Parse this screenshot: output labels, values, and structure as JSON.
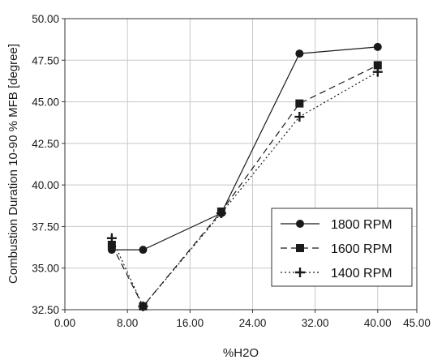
{
  "chart_data": {
    "type": "line",
    "title": "",
    "xlabel": "%H2O",
    "ylabel": "Combustion Duration 10-90 % MFB [degree]",
    "xlim": [
      0,
      45
    ],
    "ylim": [
      32.5,
      50
    ],
    "x_ticks": [
      0,
      8,
      16,
      24,
      32,
      40,
      45
    ],
    "x_tick_labels": [
      "0.00",
      "8.00",
      "16.00",
      "24.00",
      "32.00",
      "40.00",
      "45.00"
    ],
    "y_ticks": [
      32.5,
      35,
      37.5,
      40,
      42.5,
      45,
      47.5,
      50
    ],
    "y_tick_labels": [
      "32.50",
      "35.00",
      "37.50",
      "40.00",
      "42.50",
      "45.00",
      "47.50",
      "50.00"
    ],
    "grid": true,
    "legend_position": "right",
    "series": [
      {
        "name": "1800 RPM",
        "marker": "circle",
        "line_style": "solid",
        "x": [
          6,
          10,
          20,
          30,
          40
        ],
        "y": [
          36.1,
          36.1,
          38.3,
          47.9,
          48.3
        ]
      },
      {
        "name": "1600 RPM",
        "marker": "square",
        "line_style": "dashed",
        "x": [
          6,
          10,
          20,
          30,
          40
        ],
        "y": [
          36.4,
          32.7,
          38.4,
          44.9,
          47.2
        ]
      },
      {
        "name": "1400 RPM",
        "marker": "plus",
        "line_style": "dotted",
        "x": [
          6,
          10,
          20,
          30,
          40
        ],
        "y": [
          36.8,
          32.7,
          38.3,
          44.1,
          46.8
        ]
      }
    ]
  },
  "colors": {
    "line": "#1a1a1a",
    "grid": "#c8c8c8",
    "axis": "#333333"
  }
}
